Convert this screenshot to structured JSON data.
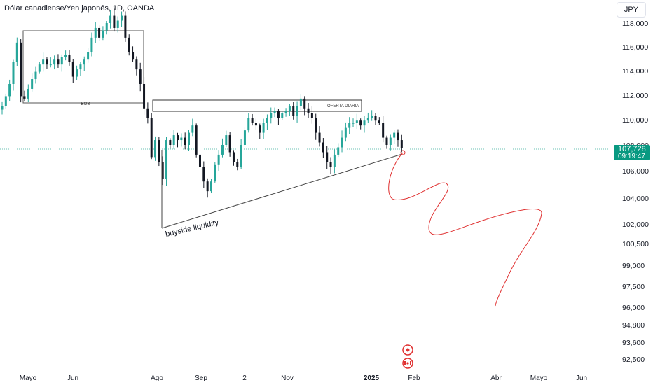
{
  "header": {
    "title": "Dólar canadiense/Yen japonés, 1D, OANDA",
    "currency_button": "JPY"
  },
  "price_badge": {
    "price": "107,728",
    "countdown": "09:19:47",
    "color": "#089981"
  },
  "annotations": {
    "bos": "BOS",
    "oferta": "OFERTA DIARIA",
    "buyside": "buyside liquidity"
  },
  "events": {
    "event_icon": "circle-dot-icon",
    "flag_icon": "canada-flag-icon"
  },
  "colors": {
    "up": "#26a69a",
    "down": "#131722",
    "drawing": "#e03131"
  },
  "chart_data": {
    "type": "candlestick",
    "symbol": "CAD/JPY",
    "interval": "1D",
    "source": "OANDA",
    "y_ticks": [
      "118,000",
      "116,000",
      "114,000",
      "112,000",
      "110,000",
      "108,000",
      "106,000",
      "104,000",
      "102,000",
      "100,500",
      "99,000",
      "97,500",
      "96,000",
      "94,800",
      "93,600",
      "92,500"
    ],
    "x_ticks": [
      {
        "label": "Mayo",
        "bold": false
      },
      {
        "label": "Jun",
        "bold": false
      },
      {
        "label": "Ago",
        "bold": false
      },
      {
        "label": "Sep",
        "bold": false
      },
      {
        "label": "2",
        "bold": false
      },
      {
        "label": "Nov",
        "bold": false
      },
      {
        "label": "2025",
        "bold": true
      },
      {
        "label": "Feb",
        "bold": false
      },
      {
        "label": "Abr",
        "bold": false
      },
      {
        "label": "Mayo",
        "bold": false
      },
      {
        "label": "Jun",
        "bold": false
      }
    ],
    "last_price": 107.728,
    "path_closes": [
      111.2,
      112.0,
      113.0,
      114.8,
      116.4,
      112.0,
      111.8,
      112.6,
      113.4,
      114.0,
      114.6,
      115.0,
      114.6,
      114.6,
      115.0,
      114.6,
      115.2,
      115.4,
      114.8,
      113.6,
      114.2,
      114.6,
      115.0,
      115.6,
      116.8,
      117.6,
      116.8,
      117.4,
      118.0,
      118.6,
      117.6,
      118.2,
      118.6,
      116.8,
      115.6,
      115.0,
      114.2,
      113.0,
      111.0,
      110.2,
      107.0,
      108.4,
      106.6,
      105.2,
      108.4,
      108.0,
      108.8,
      108.4,
      108.6,
      108.0,
      109.0,
      109.6,
      107.2,
      106.2,
      105.0,
      104.2,
      105.0,
      106.4,
      107.2,
      108.0,
      108.8,
      107.4,
      106.6,
      106.2,
      108.0,
      109.2,
      110.2,
      109.8,
      109.6,
      109.0,
      109.8,
      110.2,
      110.6,
      110.8,
      110.2,
      110.6,
      110.8,
      111.2,
      110.4,
      111.2,
      111.8,
      111.0,
      110.6,
      110.2,
      109.0,
      108.2,
      107.4,
      106.6,
      106.2,
      107.2,
      107.8,
      108.6,
      109.4,
      109.8,
      109.8,
      110.0,
      109.6,
      110.0,
      110.2,
      110.4,
      110.0,
      109.8,
      108.6,
      108.0,
      108.6,
      109.0,
      108.4,
      107.728
    ],
    "zones": [
      {
        "label": "BOS",
        "from_idx": 1,
        "to_idx": 40,
        "low": 111.4,
        "high": 117.9
      },
      {
        "label": "OFERTA DIARIA",
        "from_idx": 38,
        "to_idx": 105,
        "low": 110.7,
        "high": 111.6
      }
    ],
    "trendline": {
      "label": "buyside liquidity",
      "from": {
        "idx": 40,
        "price": 101.6
      },
      "to": {
        "idx": 105,
        "price": 107.3
      }
    },
    "projection_path_prices": [
      107.2,
      105.2,
      103.9,
      105.8,
      101.2,
      102.4,
      103.4,
      96.2
    ]
  }
}
